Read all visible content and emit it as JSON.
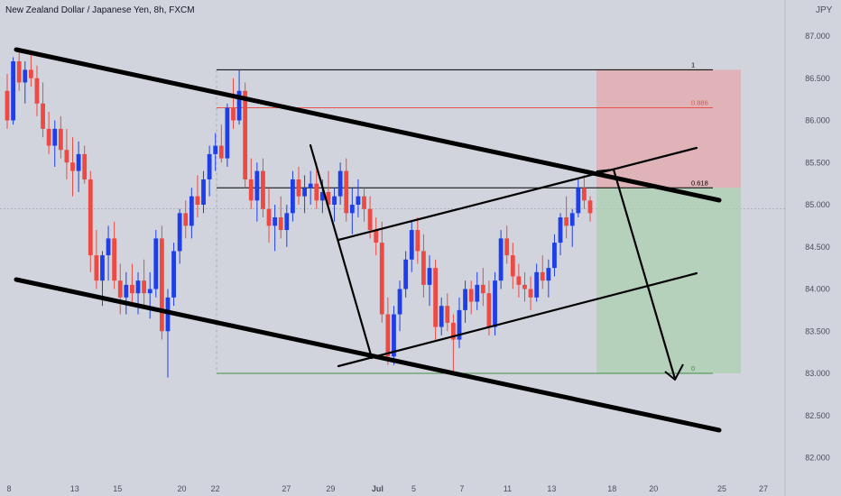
{
  "header": {
    "title": "New Zealand Dollar / Japanese Yen, 8h, FXCM",
    "currency": "JPY"
  },
  "colors": {
    "up": "#1e3fe8",
    "down": "#ec4a43",
    "background": "#d1d4dc",
    "trendline": "#000000",
    "fib": "#000000",
    "fib_0886": "#e8524e",
    "fib_0": "#3f8f3f",
    "stop_zone": "#e7a5a8",
    "target_zone": "#a9cfad"
  },
  "chart_data": {
    "type": "candlestick",
    "symbol": "NZDJPY",
    "timeframe": "8h",
    "y_ticks": [
      "87.000",
      "86.500",
      "86.000",
      "85.500",
      "85.000",
      "84.500",
      "84.000",
      "83.500",
      "83.000",
      "82.500",
      "82.000"
    ],
    "ylim": [
      82.0,
      87.0
    ],
    "x_ticks": [
      "8",
      "13",
      "15",
      "20",
      "22",
      "27",
      "29",
      "Jul",
      "5",
      "7",
      "11",
      "13",
      "18",
      "20",
      "25",
      "27"
    ],
    "fib_levels": [
      {
        "label": "1",
        "price": 86.6
      },
      {
        "label": "0.886",
        "price": 86.15
      },
      {
        "label": "0.618",
        "price": 85.2
      },
      {
        "label": "0",
        "price": 83.0
      }
    ],
    "candles": [
      [
        86.35,
        86.55,
        85.9,
        86.0
      ],
      [
        86.0,
        86.75,
        85.95,
        86.7
      ],
      [
        86.7,
        86.85,
        86.35,
        86.45
      ],
      [
        86.45,
        86.7,
        86.2,
        86.6
      ],
      [
        86.6,
        86.8,
        86.4,
        86.5
      ],
      [
        86.5,
        86.65,
        86.05,
        86.2
      ],
      [
        86.2,
        86.45,
        85.8,
        85.9
      ],
      [
        85.9,
        86.1,
        85.6,
        85.7
      ],
      [
        85.7,
        86.0,
        85.45,
        85.9
      ],
      [
        85.9,
        86.05,
        85.55,
        85.65
      ],
      [
        85.65,
        85.9,
        85.3,
        85.5
      ],
      [
        85.5,
        85.8,
        85.1,
        85.4
      ],
      [
        85.4,
        85.75,
        85.15,
        85.6
      ],
      [
        85.6,
        85.7,
        85.25,
        85.3
      ],
      [
        85.3,
        85.4,
        84.2,
        84.4
      ],
      [
        84.4,
        84.7,
        84.0,
        84.1
      ],
      [
        84.1,
        84.45,
        83.8,
        84.4
      ],
      [
        84.4,
        84.75,
        84.1,
        84.6
      ],
      [
        84.6,
        84.8,
        84.0,
        84.1
      ],
      [
        84.1,
        84.3,
        83.7,
        83.9
      ],
      [
        83.9,
        84.2,
        83.7,
        84.05
      ],
      [
        84.05,
        84.3,
        83.8,
        83.95
      ],
      [
        83.95,
        84.2,
        83.7,
        84.1
      ],
      [
        84.1,
        84.35,
        83.8,
        83.95
      ],
      [
        83.95,
        84.2,
        83.65,
        84.0
      ],
      [
        84.0,
        84.7,
        83.9,
        84.6
      ],
      [
        84.6,
        84.75,
        83.4,
        83.5
      ],
      [
        83.5,
        84.0,
        82.95,
        83.9
      ],
      [
        83.9,
        84.55,
        83.8,
        84.45
      ],
      [
        84.45,
        84.95,
        84.3,
        84.9
      ],
      [
        84.9,
        85.05,
        84.6,
        84.75
      ],
      [
        84.75,
        85.2,
        84.6,
        85.1
      ],
      [
        85.1,
        85.35,
        84.85,
        85.0
      ],
      [
        85.0,
        85.4,
        84.9,
        85.3
      ],
      [
        85.3,
        85.7,
        85.1,
        85.6
      ],
      [
        85.6,
        85.85,
        85.4,
        85.7
      ],
      [
        85.7,
        85.95,
        85.5,
        85.55
      ],
      [
        85.55,
        86.2,
        85.45,
        86.15
      ],
      [
        86.15,
        86.5,
        85.9,
        86.0
      ],
      [
        86.0,
        86.6,
        85.95,
        86.35
      ],
      [
        86.35,
        86.45,
        85.2,
        85.3
      ],
      [
        85.3,
        85.55,
        84.95,
        85.05
      ],
      [
        85.05,
        85.5,
        84.8,
        85.4
      ],
      [
        85.4,
        85.55,
        84.85,
        84.95
      ],
      [
        84.95,
        85.2,
        84.55,
        84.75
      ],
      [
        84.75,
        85.0,
        84.45,
        84.85
      ],
      [
        84.85,
        85.1,
        84.6,
        84.7
      ],
      [
        84.7,
        85.0,
        84.5,
        84.9
      ],
      [
        84.9,
        85.4,
        84.8,
        85.3
      ],
      [
        85.3,
        85.45,
        85.0,
        85.1
      ],
      [
        85.1,
        85.35,
        84.9,
        85.2
      ],
      [
        85.2,
        85.4,
        85.0,
        85.25
      ],
      [
        85.25,
        85.5,
        84.95,
        85.05
      ],
      [
        85.05,
        85.3,
        84.9,
        85.15
      ],
      [
        85.15,
        85.4,
        84.95,
        85.0
      ],
      [
        85.0,
        85.2,
        84.8,
        85.1
      ],
      [
        85.1,
        85.5,
        85.0,
        85.4
      ],
      [
        85.4,
        85.55,
        84.8,
        84.9
      ],
      [
        84.9,
        85.2,
        84.65,
        85.0
      ],
      [
        85.0,
        85.3,
        84.85,
        85.1
      ],
      [
        85.1,
        85.2,
        84.8,
        84.95
      ],
      [
        84.95,
        85.1,
        84.6,
        84.7
      ],
      [
        84.7,
        84.85,
        84.4,
        84.55
      ],
      [
        84.55,
        84.8,
        83.6,
        83.7
      ],
      [
        83.7,
        83.9,
        83.1,
        83.2
      ],
      [
        83.2,
        83.8,
        83.1,
        83.7
      ],
      [
        83.7,
        84.1,
        83.5,
        84.0
      ],
      [
        84.0,
        84.45,
        83.9,
        84.35
      ],
      [
        84.35,
        84.8,
        84.2,
        84.7
      ],
      [
        84.7,
        84.85,
        84.3,
        84.45
      ],
      [
        84.45,
        84.65,
        83.9,
        84.05
      ],
      [
        84.05,
        84.4,
        83.8,
        84.25
      ],
      [
        84.25,
        84.35,
        83.4,
        83.55
      ],
      [
        83.55,
        83.9,
        83.45,
        83.8
      ],
      [
        83.8,
        83.95,
        83.5,
        83.6
      ],
      [
        83.6,
        83.7,
        83.0,
        83.4
      ],
      [
        83.4,
        83.9,
        83.3,
        83.75
      ],
      [
        83.75,
        84.1,
        83.6,
        84.0
      ],
      [
        84.0,
        84.1,
        83.7,
        83.85
      ],
      [
        83.85,
        84.2,
        83.75,
        84.05
      ],
      [
        84.05,
        84.25,
        83.8,
        83.95
      ],
      [
        83.95,
        84.1,
        83.45,
        83.55
      ],
      [
        83.55,
        84.2,
        83.45,
        84.1
      ],
      [
        84.1,
        84.7,
        84.0,
        84.6
      ],
      [
        84.6,
        84.75,
        84.3,
        84.4
      ],
      [
        84.4,
        84.55,
        84.0,
        84.15
      ],
      [
        84.15,
        84.3,
        83.9,
        84.05
      ],
      [
        84.05,
        84.2,
        83.85,
        84.0
      ],
      [
        84.0,
        84.15,
        83.75,
        83.9
      ],
      [
        83.9,
        84.3,
        83.85,
        84.2
      ],
      [
        84.2,
        84.4,
        84.0,
        84.1
      ],
      [
        84.1,
        84.35,
        83.9,
        84.25
      ],
      [
        84.25,
        84.65,
        84.15,
        84.55
      ],
      [
        84.55,
        84.9,
        84.4,
        84.85
      ],
      [
        84.85,
        85.1,
        84.6,
        84.75
      ],
      [
        84.75,
        84.95,
        84.5,
        84.9
      ],
      [
        84.9,
        85.3,
        84.85,
        85.2
      ],
      [
        85.2,
        85.35,
        84.95,
        85.05
      ],
      [
        85.05,
        85.1,
        84.8,
        84.9
      ]
    ],
    "trendlines": [
      {
        "name": "upper-channel",
        "p1": [
          "06-08",
          86.85
        ],
        "p2": [
          "07-25",
          85.05
        ]
      },
      {
        "name": "lower-channel",
        "p1": [
          "06-08",
          84.1
        ],
        "p2": [
          "07-25",
          82.3
        ]
      },
      {
        "name": "wedge-upper",
        "p1": [
          "06-29",
          84.55
        ],
        "p2": [
          "07-20",
          85.65
        ]
      },
      {
        "name": "wedge-lower",
        "p1": [
          "06-29",
          82.95
        ],
        "p2": [
          "07-20",
          84.15
        ]
      },
      {
        "name": "impulse-leg",
        "p1": [
          "06-28",
          85.7
        ],
        "p2": [
          "07-01",
          83.15
        ]
      },
      {
        "name": "projection-arrow",
        "p1": [
          "07-18",
          85.4
        ],
        "p2": [
          "07-21",
          82.9
        ]
      }
    ],
    "position": {
      "entry": 85.2,
      "stop": 86.6,
      "target": 83.0
    }
  }
}
